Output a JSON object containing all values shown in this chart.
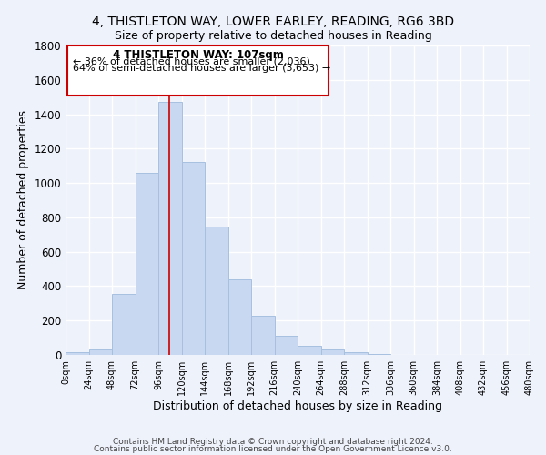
{
  "title": "4, THISTLETON WAY, LOWER EARLEY, READING, RG6 3BD",
  "subtitle": "Size of property relative to detached houses in Reading",
  "xlabel": "Distribution of detached houses by size in Reading",
  "ylabel": "Number of detached properties",
  "bar_color": "#c8d8f0",
  "bar_edge_color": "#a8c0e0",
  "background_color": "#eef2fb",
  "grid_color": "white",
  "bins": [
    0,
    24,
    48,
    72,
    96,
    120,
    144,
    168,
    192,
    216,
    240,
    264,
    288,
    312,
    336,
    360,
    384,
    408,
    432,
    456,
    480
  ],
  "bin_labels": [
    "0sqm",
    "24sqm",
    "48sqm",
    "72sqm",
    "96sqm",
    "120sqm",
    "144sqm",
    "168sqm",
    "192sqm",
    "216sqm",
    "240sqm",
    "264sqm",
    "288sqm",
    "312sqm",
    "336sqm",
    "360sqm",
    "384sqm",
    "408sqm",
    "432sqm",
    "456sqm",
    "480sqm"
  ],
  "counts": [
    15,
    30,
    355,
    1060,
    1470,
    1120,
    745,
    440,
    230,
    110,
    55,
    30,
    18,
    5,
    2,
    1,
    0,
    0,
    0,
    0
  ],
  "vline_x": 107,
  "vline_color": "#cc0000",
  "annotation_title": "4 THISTLETON WAY: 107sqm",
  "annotation_line1": "← 36% of detached houses are smaller (2,036)",
  "annotation_line2": "64% of semi-detached houses are larger (3,653) →",
  "annotation_box_color": "white",
  "annotation_box_edge": "#cc0000",
  "ylim": [
    0,
    1800
  ],
  "yticks": [
    0,
    200,
    400,
    600,
    800,
    1000,
    1200,
    1400,
    1600,
    1800
  ],
  "footer1": "Contains HM Land Registry data © Crown copyright and database right 2024.",
  "footer2": "Contains public sector information licensed under the Open Government Licence v3.0."
}
